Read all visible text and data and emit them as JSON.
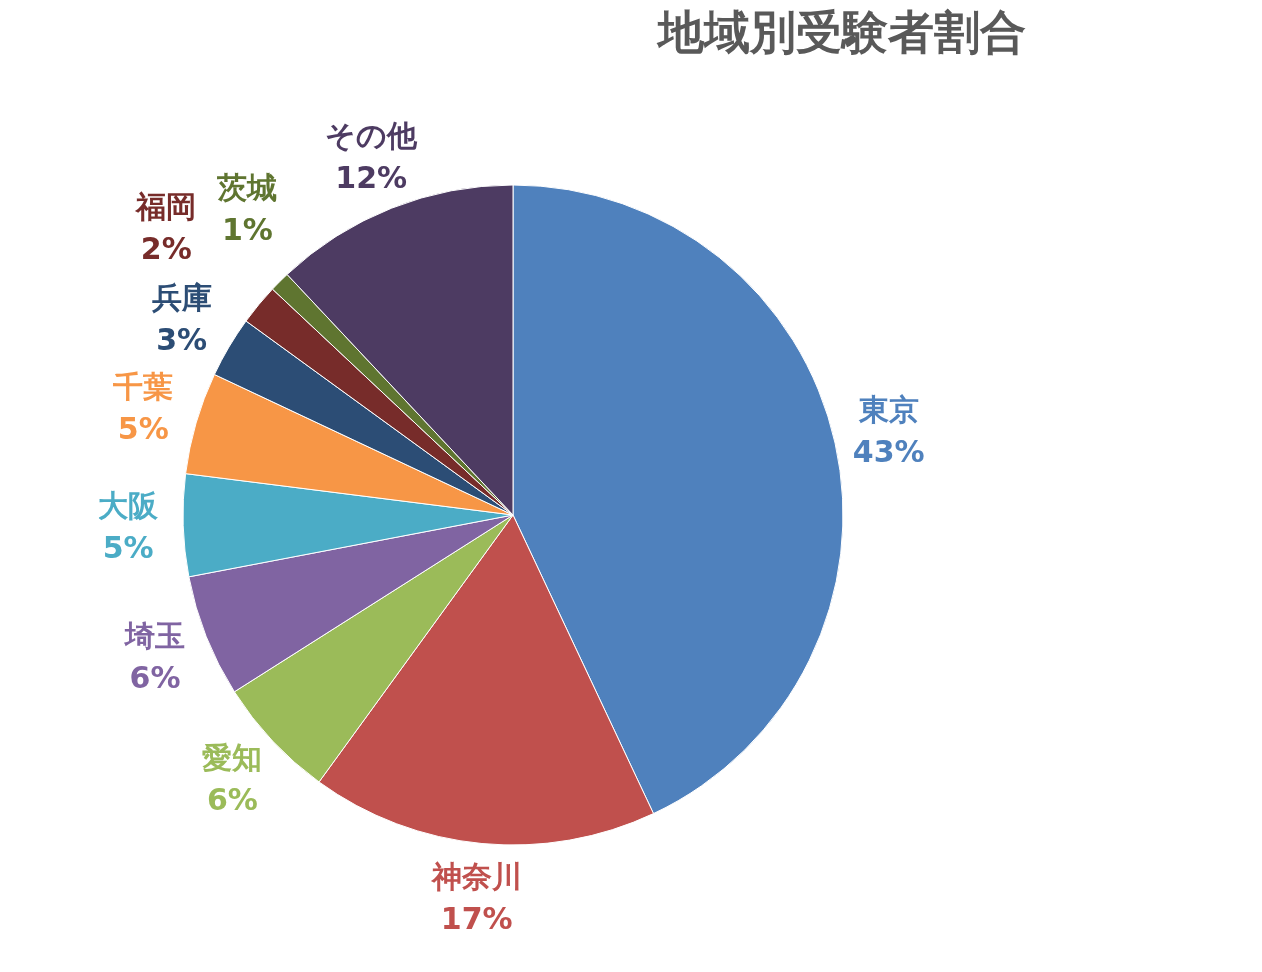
{
  "chart_data": {
    "type": "pie",
    "title": "地域別受験者割合",
    "categories": [
      "東京",
      "神奈川",
      "愛知",
      "埼玉",
      "大阪",
      "千葉",
      "兵庫",
      "福岡",
      "茨城",
      "その他"
    ],
    "values": [
      43,
      17,
      6,
      6,
      5,
      5,
      3,
      2,
      1,
      12
    ],
    "value_labels": [
      "43%",
      "17%",
      "6%",
      "6%",
      "5%",
      "5%",
      "3%",
      "2%",
      "1%",
      "12%"
    ],
    "colors": [
      "#4f81bd",
      "#c0504d",
      "#9bbb59",
      "#8064a2",
      "#4bacc6",
      "#f79646",
      "#2c4d75",
      "#772c2a",
      "#5f7530",
      "#4d3b62"
    ],
    "legend": false
  }
}
